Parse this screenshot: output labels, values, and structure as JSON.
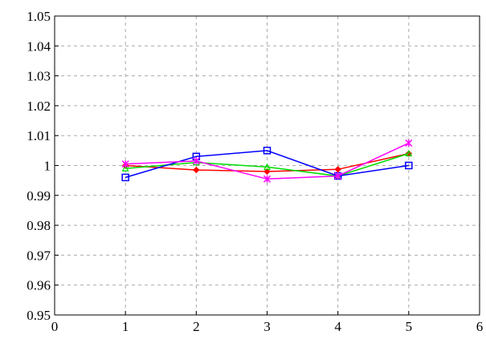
{
  "chart_data": {
    "type": "line",
    "title": "",
    "xlabel": "",
    "ylabel": "",
    "xlim": [
      0,
      6
    ],
    "ylim": [
      0.95,
      1.05
    ],
    "x_ticks": [
      0,
      1,
      2,
      3,
      4,
      5,
      6
    ],
    "y_ticks": [
      0.95,
      0.96,
      0.97,
      0.98,
      0.99,
      1,
      1.01,
      1.02,
      1.03,
      1.04,
      1.05
    ],
    "x_tick_labels": [
      "0",
      "1",
      "2",
      "3",
      "4",
      "5",
      "6"
    ],
    "y_tick_labels": [
      "0.95",
      "0.96",
      "0.97",
      "0.98",
      "0.99",
      "1",
      "1.01",
      "1.02",
      "1.03",
      "1.04",
      "1.05"
    ],
    "grid": true,
    "grid_color": "#aaaaaa",
    "legend": "none",
    "series": [
      {
        "color": "#ff0000",
        "marker": "diamond",
        "x": [
          1,
          2,
          3,
          4,
          5
        ],
        "y": [
          1.0,
          0.9985,
          0.998,
          0.9987,
          1.004
        ]
      },
      {
        "color": "#00dd00",
        "marker": "triangle",
        "x": [
          1,
          2,
          3,
          4,
          5
        ],
        "y": [
          0.999,
          1.001,
          0.9995,
          0.9965,
          1.004
        ]
      },
      {
        "color": "#0000ff",
        "marker": "square",
        "x": [
          1,
          2,
          3,
          4,
          5
        ],
        "y": [
          0.996,
          1.003,
          1.005,
          0.9965,
          1.0
        ]
      },
      {
        "color": "#ff00ff",
        "marker": "x",
        "x": [
          1,
          2,
          3,
          4,
          5
        ],
        "y": [
          1.0005,
          1.0015,
          0.9955,
          0.9965,
          1.0075
        ]
      }
    ]
  }
}
